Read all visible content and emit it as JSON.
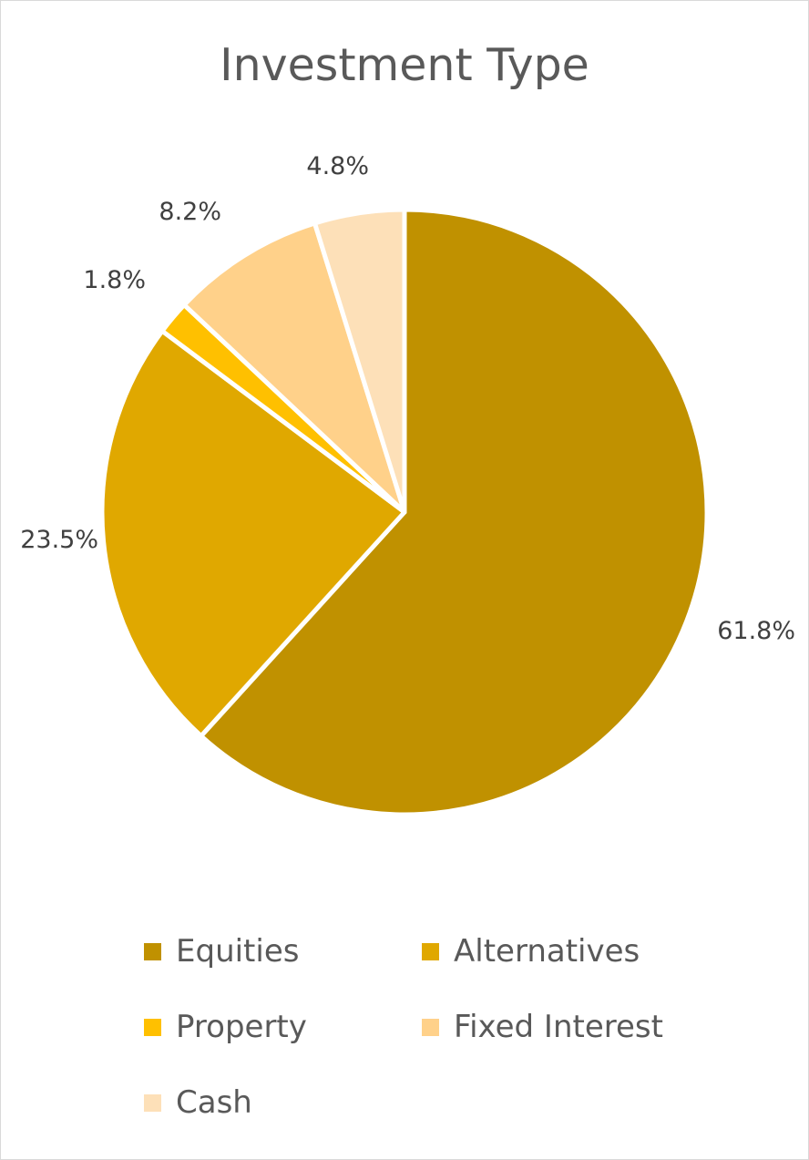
{
  "chart_data": {
    "type": "pie",
    "title": "Investment Type",
    "categories": [
      "Equities",
      "Alternatives",
      "Property",
      "Fixed Interest",
      "Cash"
    ],
    "values": [
      61.8,
      23.5,
      1.8,
      8.2,
      4.8
    ],
    "value_labels": [
      "61.8%",
      "23.5%",
      "1.8%",
      "8.2%",
      "4.8%"
    ],
    "colors": [
      "#c09100",
      "#e0a800",
      "#ffc000",
      "#ffd18a",
      "#fde0b8"
    ],
    "start_angle": "12 o'clock",
    "direction": "clockwise",
    "legend_position": "bottom"
  }
}
